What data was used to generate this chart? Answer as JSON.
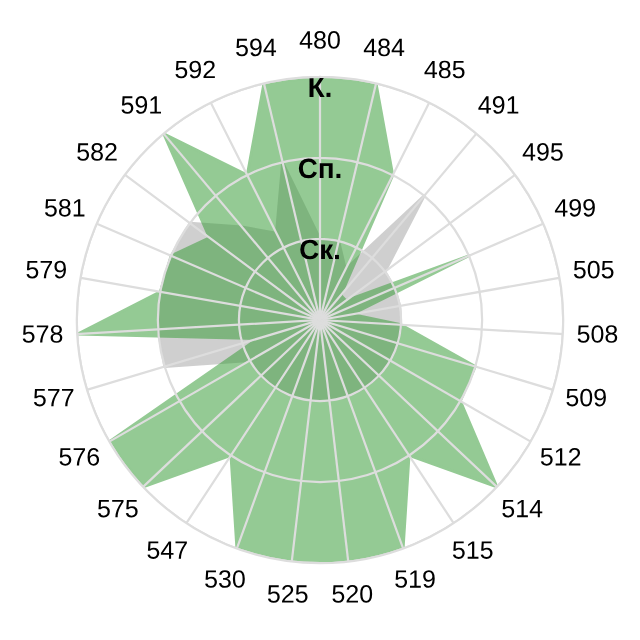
{
  "chart_data": {
    "type": "radar",
    "categories": [
      "480",
      "484",
      "485",
      "491",
      "495",
      "499",
      "505",
      "508",
      "509",
      "512",
      "514",
      "515",
      "519",
      "520",
      "525",
      "530",
      "547",
      "575",
      "576",
      "577",
      "578",
      "579",
      "581",
      "582",
      "591",
      "592",
      "594"
    ],
    "ylim": [
      0,
      3
    ],
    "yticks": [
      {
        "value": 1,
        "label": "Ск."
      },
      {
        "value": 2,
        "label": "Сп."
      },
      {
        "value": 3,
        "label": "К."
      }
    ],
    "grid": true,
    "series": [
      {
        "color": "#a8a8a8",
        "values": [
          1,
          1,
          0.7,
          2,
          1,
          1,
          1,
          1,
          1,
          1,
          1,
          1,
          1,
          1,
          1,
          1,
          1,
          1,
          1,
          2,
          2,
          2,
          2,
          2,
          1.5,
          1.2,
          2
        ]
      },
      {
        "color": "#3c9e3c",
        "values": [
          3,
          3,
          2,
          0.4,
          0.4,
          2,
          0.4,
          1,
          2,
          2,
          3,
          2,
          3,
          3,
          3,
          3,
          2,
          3,
          3,
          0.8,
          3,
          2,
          2,
          1.7,
          3,
          2,
          3
        ]
      }
    ]
  }
}
